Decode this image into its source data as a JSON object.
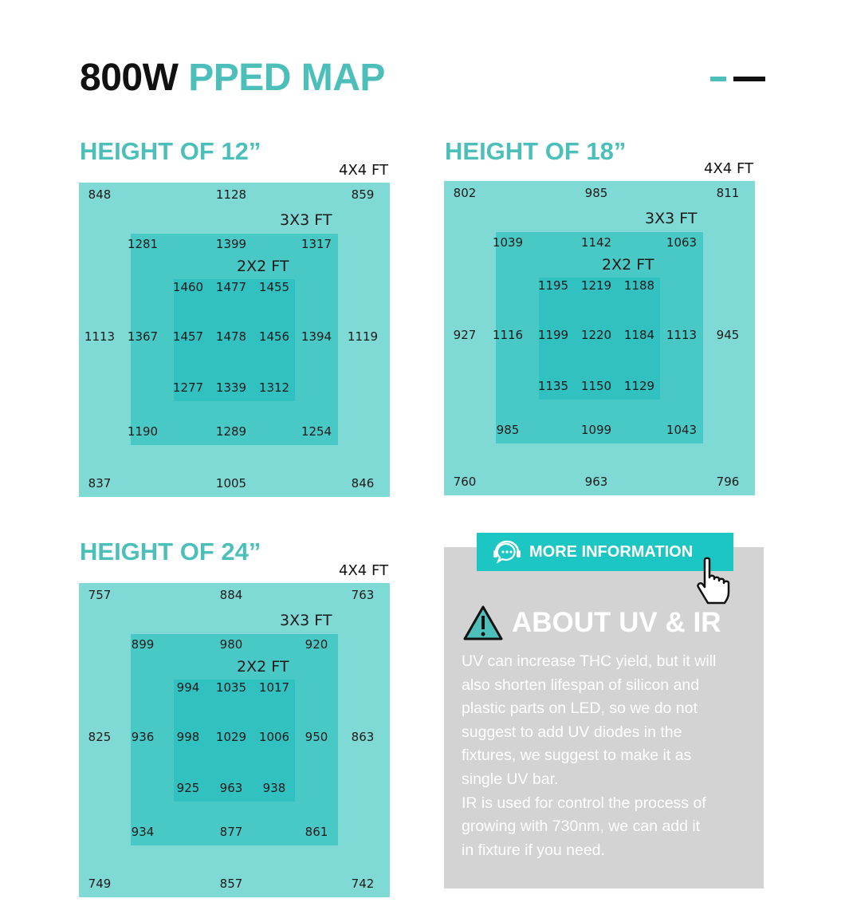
{
  "header": {
    "title_prefix": "800W",
    "title_accent": "PPED MAP"
  },
  "colors": {
    "accent": "#4cbfbb",
    "outer_zone": "#7fd9d5",
    "mid_zone": "#49c9c6",
    "inner_zone": "#30c1c0",
    "button": "#1cc6c3",
    "info_bg": "#d3d3d3"
  },
  "maps": [
    {
      "heading": "HEIGHT OF 12”",
      "outer_label": "4X4 FT",
      "mid_label": "3X3 FT",
      "inner_label": "2X2 FT",
      "rows": [
        [
          "848",
          "1128",
          "859"
        ],
        [
          "1281",
          "1399",
          "1317"
        ],
        [
          "1460",
          "1477",
          "1455"
        ],
        [
          "1113",
          "1367",
          "1457",
          "1478",
          "1456",
          "1394",
          "1119"
        ],
        [
          "1277",
          "1339",
          "1312"
        ],
        [
          "1190",
          "1289",
          "1254"
        ],
        [
          "837",
          "1005",
          "846"
        ]
      ]
    },
    {
      "heading": "HEIGHT OF 18”",
      "outer_label": "4X4 FT",
      "mid_label": "3X3 FT",
      "inner_label": "2X2 FT",
      "rows": [
        [
          "802",
          "985",
          "811"
        ],
        [
          "1039",
          "1142",
          "1063"
        ],
        [
          "1195",
          "1219",
          "1188"
        ],
        [
          "927",
          "1116",
          "1199",
          "1220",
          "1184",
          "1113",
          "945"
        ],
        [
          "1135",
          "1150",
          "1129"
        ],
        [
          "985",
          "1099",
          "1043"
        ],
        [
          "760",
          "963",
          "796"
        ]
      ]
    },
    {
      "heading": "HEIGHT OF 24”",
      "outer_label": "4X4 FT",
      "mid_label": "3X3 FT",
      "inner_label": "2X2 FT",
      "rows": [
        [
          "757",
          "884",
          "763"
        ],
        [
          "899",
          "980",
          "920"
        ],
        [
          "994",
          "1035",
          "1017"
        ],
        [
          "825",
          "936",
          "998",
          "1029",
          "1006",
          "950",
          "863"
        ],
        [
          "925",
          "963",
          "938"
        ],
        [
          "934",
          "877",
          "861"
        ],
        [
          "749",
          "857",
          "742"
        ]
      ]
    }
  ],
  "info": {
    "button_label": "MORE INFORMATION",
    "button_icon": "headset-chat-icon",
    "cursor_icon": "hand-pointer-icon",
    "warning_icon": "warning-triangle-icon",
    "heading": "ABOUT UV & IR",
    "lines": [
      "UV can increase THC yield, but it will",
      "also shorten lifespan of silicon and",
      "plastic parts on LED, so we do not",
      "suggest to add UV diodes in the",
      "fixtures, we suggest to make it as",
      "single UV bar.",
      "IR is used for control the process of",
      "growing with 730nm, we can add it",
      "in fixture if you need."
    ]
  }
}
